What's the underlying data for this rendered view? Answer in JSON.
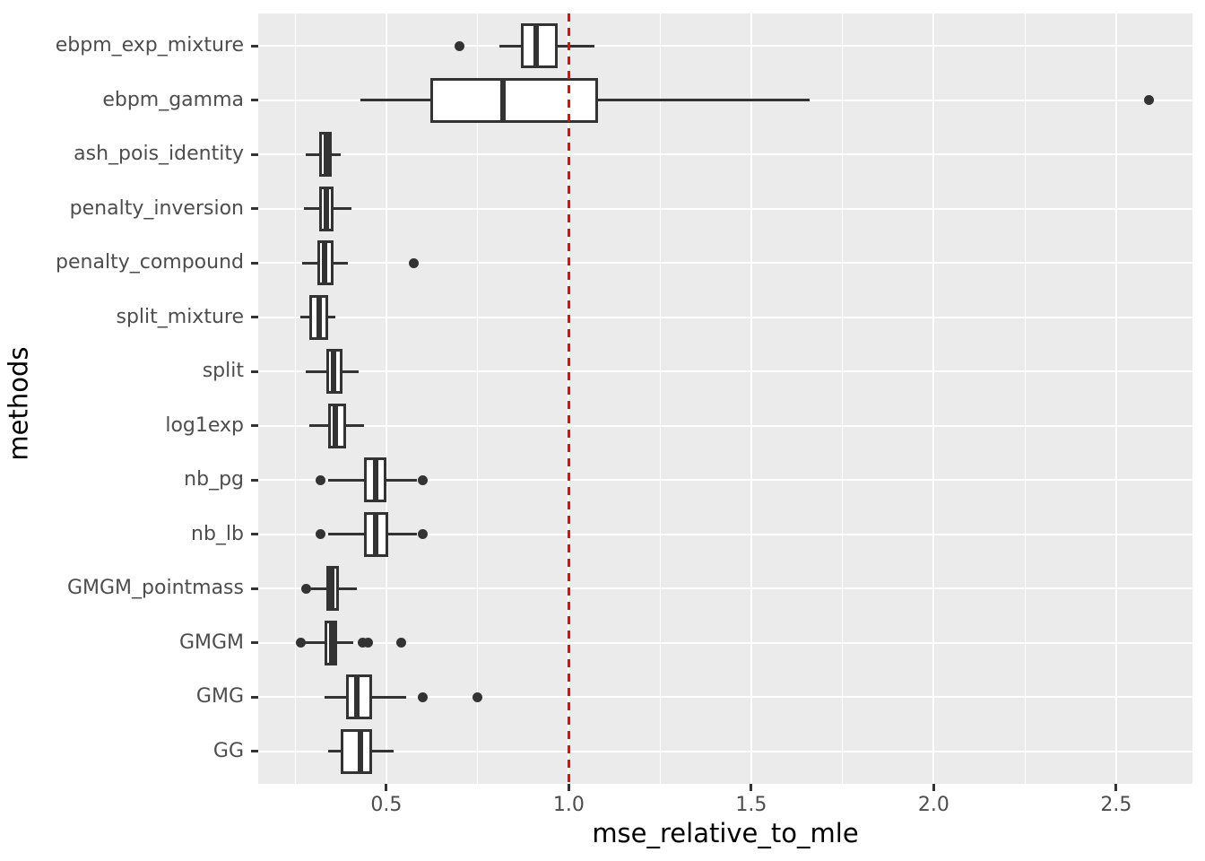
{
  "figure": {
    "background": "#FFFFFF"
  },
  "chart_data": {
    "type": "boxplot",
    "orientation": "horizontal",
    "xlabel": "mse_relative_to_mle",
    "ylabel": "methods",
    "xlim": [
      0.149,
      2.709
    ],
    "x_major_ticks": [
      0.5,
      1.0,
      1.5,
      2.0,
      2.5
    ],
    "x_tick_labels": [
      "0.5",
      "1.0",
      "1.5",
      "2.0",
      "2.5"
    ],
    "x_minor_ticks": [
      0.25,
      0.75,
      1.25,
      1.75,
      2.25
    ],
    "reference_line_x": 1.0,
    "grid": "on",
    "legend_position": "none",
    "categories_top_to_bottom": [
      "ebpm_exp_mixture",
      "ebpm_gamma",
      "ash_pois_identity",
      "penalty_inversion",
      "penalty_compound",
      "split_mixture",
      "split",
      "log1exp",
      "nb_pg",
      "nb_lb",
      "GMGM_pointmass",
      "GMGM",
      "GMG",
      "GG"
    ],
    "boxes": [
      {
        "method": "ebpm_exp_mixture",
        "whisker_low": 0.81,
        "q1": 0.87,
        "median": 0.91,
        "q3": 0.97,
        "whisker_high": 1.07,
        "outliers": [
          0.7
        ]
      },
      {
        "method": "ebpm_gamma",
        "whisker_low": 0.43,
        "q1": 0.62,
        "median": 0.82,
        "q3": 1.08,
        "whisker_high": 1.66,
        "outliers": [
          2.59
        ]
      },
      {
        "method": "ash_pois_identity",
        "whisker_low": 0.28,
        "q1": 0.315,
        "median": 0.335,
        "q3": 0.35,
        "whisker_high": 0.375,
        "outliers": []
      },
      {
        "method": "penalty_inversion",
        "whisker_low": 0.275,
        "q1": 0.315,
        "median": 0.335,
        "q3": 0.355,
        "whisker_high": 0.405,
        "outliers": []
      },
      {
        "method": "penalty_compound",
        "whisker_low": 0.27,
        "q1": 0.31,
        "median": 0.33,
        "q3": 0.355,
        "whisker_high": 0.395,
        "outliers": [
          0.575
        ]
      },
      {
        "method": "split_mixture",
        "whisker_low": 0.265,
        "q1": 0.29,
        "median": 0.315,
        "q3": 0.34,
        "whisker_high": 0.36,
        "outliers": []
      },
      {
        "method": "split",
        "whisker_low": 0.28,
        "q1": 0.335,
        "median": 0.355,
        "q3": 0.38,
        "whisker_high": 0.425,
        "outliers": []
      },
      {
        "method": "log1exp",
        "whisker_low": 0.29,
        "q1": 0.34,
        "median": 0.36,
        "q3": 0.39,
        "whisker_high": 0.44,
        "outliers": []
      },
      {
        "method": "nb_pg",
        "whisker_low": 0.34,
        "q1": 0.44,
        "median": 0.47,
        "q3": 0.5,
        "whisker_high": 0.585,
        "outliers": [
          0.32,
          0.6
        ]
      },
      {
        "method": "nb_lb",
        "whisker_low": 0.34,
        "q1": 0.44,
        "median": 0.47,
        "q3": 0.505,
        "whisker_high": 0.585,
        "outliers": [
          0.32,
          0.6
        ]
      },
      {
        "method": "GMGM_pointmass",
        "whisker_low": 0.295,
        "q1": 0.335,
        "median": 0.35,
        "q3": 0.37,
        "whisker_high": 0.42,
        "outliers": [
          0.28
        ]
      },
      {
        "method": "GMGM",
        "whisker_low": 0.275,
        "q1": 0.33,
        "median": 0.35,
        "q3": 0.365,
        "whisker_high": 0.41,
        "outliers": [
          0.265,
          0.435,
          0.45,
          0.54
        ]
      },
      {
        "method": "GMG",
        "whisker_low": 0.33,
        "q1": 0.39,
        "median": 0.42,
        "q3": 0.46,
        "whisker_high": 0.555,
        "outliers": [
          0.6,
          0.75
        ]
      },
      {
        "method": "GG",
        "whisker_low": 0.34,
        "q1": 0.375,
        "median": 0.43,
        "q3": 0.46,
        "whisker_high": 0.52,
        "outliers": []
      }
    ],
    "colors": {
      "panel_background": "#EBEBEB",
      "grid_major": "#FFFFFF",
      "grid_minor": "#FFFFFF",
      "box_stroke": "#333333",
      "box_fill": "#FFFFFF",
      "outlier": "#333333",
      "reference_line": "#FF0000",
      "tick_label": "#4D4D4D",
      "axis_title": "#000000"
    }
  }
}
